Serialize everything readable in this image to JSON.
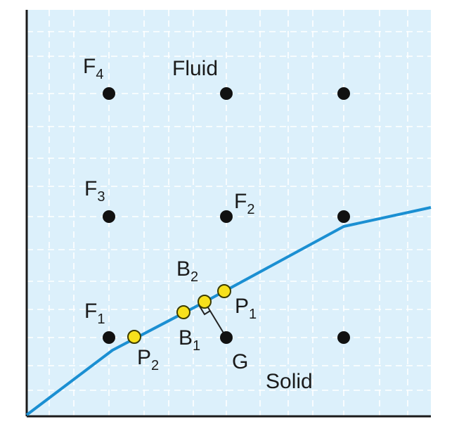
{
  "region_labels": {
    "fluid": "Fluid",
    "solid": "Solid"
  },
  "point_labels": {
    "F1": {
      "base": "F",
      "sub": "1"
    },
    "F2": {
      "base": "F",
      "sub": "2"
    },
    "F3": {
      "base": "F",
      "sub": "3"
    },
    "F4": {
      "base": "F",
      "sub": "4"
    },
    "G": {
      "base": "G",
      "sub": ""
    },
    "B1": {
      "base": "B",
      "sub": "1"
    },
    "B2": {
      "base": "B",
      "sub": "2"
    },
    "P1": {
      "base": "P",
      "sub": "1"
    },
    "P2": {
      "base": "P",
      "sub": "2"
    }
  },
  "colors": {
    "background": "#dcf0fb",
    "grid": "#ffffff",
    "boundary": "#1b8fd2",
    "node": "#111111",
    "boundary_point_fill": "#f7e11c",
    "boundary_point_stroke": "#3b3b00",
    "axis": "#1a1a1a",
    "normal_line": "#222222"
  }
}
